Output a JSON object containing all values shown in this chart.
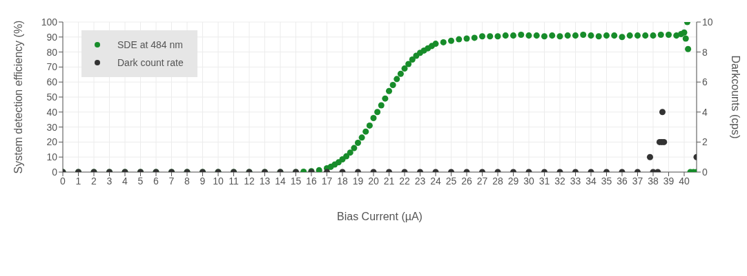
{
  "chart_data": {
    "type": "scatter",
    "xlabel": "Bias Current (µA)",
    "ylabel": "System detection efficiency (%)",
    "y2label": "Darkcounts (cps)",
    "xlim": [
      0,
      40.8
    ],
    "xticks": [
      0,
      1,
      2,
      3,
      4,
      5,
      6,
      7,
      8,
      9,
      10,
      11,
      12,
      13,
      14,
      15,
      16,
      17,
      18,
      19,
      20,
      21,
      22,
      23,
      24,
      25,
      26,
      27,
      28,
      29,
      30,
      31,
      32,
      33,
      34,
      35,
      36,
      37,
      38,
      39,
      40
    ],
    "ylim": [
      0,
      100
    ],
    "yticks": [
      0,
      10,
      20,
      30,
      40,
      50,
      60,
      70,
      80,
      90,
      100
    ],
    "y2lim": [
      0,
      10
    ],
    "y2ticks": [
      0,
      2,
      4,
      6,
      8,
      10
    ],
    "grid": true,
    "legend": "top left",
    "marker": "circle",
    "series": [
      {
        "name": "SDE at 484 nm",
        "color": "#178c2a",
        "x": [
          0,
          1,
          2,
          3,
          4,
          5,
          6,
          7,
          8,
          9,
          10,
          11,
          12,
          13,
          14,
          15,
          15.5,
          16,
          16.5,
          17,
          17.25,
          17.5,
          17.75,
          18,
          18.25,
          18.5,
          18.75,
          19,
          19.25,
          19.5,
          19.75,
          20,
          20.25,
          20.5,
          20.75,
          21,
          21.25,
          21.5,
          21.75,
          22,
          22.25,
          22.5,
          22.75,
          23,
          23.25,
          23.5,
          23.75,
          24,
          24.5,
          25,
          25.5,
          26,
          26.5,
          27,
          27.5,
          28,
          28.5,
          29,
          29.5,
          30,
          30.5,
          31,
          31.5,
          32,
          32.5,
          33,
          33.5,
          34,
          34.5,
          35,
          35.5,
          36,
          36.5,
          37,
          37.5,
          38,
          38.5,
          39,
          39.5,
          39.8,
          40,
          40.1,
          40.2,
          40.25,
          40.4,
          40.6,
          40.8
        ],
        "values": [
          0,
          0,
          0,
          0,
          0,
          0,
          0,
          0,
          0,
          0,
          0,
          0,
          0,
          0,
          0,
          0,
          0.2,
          0.6,
          1.2,
          2.5,
          3.5,
          5,
          6.5,
          8.5,
          10.5,
          13,
          16,
          19.5,
          23,
          27,
          31,
          36,
          40,
          44.5,
          49,
          54,
          58,
          62,
          65.5,
          69,
          72,
          75,
          77.5,
          79.5,
          81,
          82.5,
          84,
          85.5,
          86.5,
          87.5,
          88.5,
          89,
          89.5,
          90.5,
          90.5,
          90.5,
          91,
          91,
          91.5,
          91,
          91,
          90.5,
          91,
          90.5,
          91,
          91,
          91.5,
          91,
          90.5,
          91,
          91,
          90,
          91,
          91,
          91,
          91,
          91.5,
          91.5,
          91,
          92,
          93,
          89,
          100,
          82,
          0,
          0,
          0
        ]
      },
      {
        "name": "Dark count rate",
        "color": "#333333",
        "axis": "y2",
        "x": [
          0,
          1,
          2,
          3,
          4,
          5,
          6,
          7,
          8,
          9,
          10,
          11,
          12,
          13,
          14,
          15,
          16,
          17,
          18,
          19,
          20,
          21,
          22,
          23,
          24,
          25,
          26,
          27,
          28,
          29,
          30,
          31,
          32,
          33,
          34,
          35,
          36,
          37,
          37.8,
          38,
          38.3,
          38.42,
          38.56,
          38.6,
          38.7,
          40.8
        ],
        "values": [
          0,
          0,
          0,
          0,
          0,
          0,
          0,
          0,
          0,
          0,
          0,
          0,
          0,
          0,
          0,
          0,
          0,
          0,
          0,
          0,
          0,
          0,
          0,
          0,
          0,
          0,
          0,
          0,
          0,
          0,
          0,
          0,
          0,
          0,
          0,
          0,
          0,
          0,
          1,
          0,
          0,
          2,
          2,
          4,
          2,
          1
        ]
      }
    ]
  }
}
